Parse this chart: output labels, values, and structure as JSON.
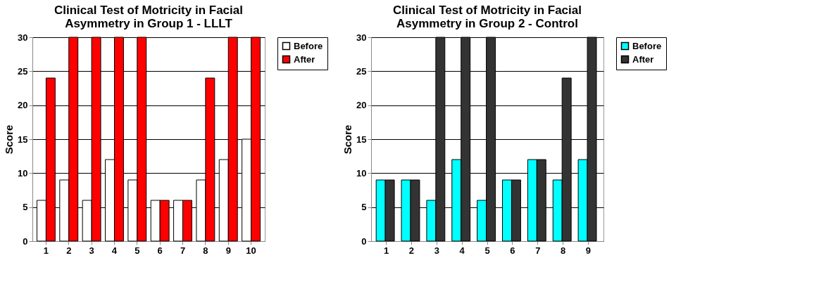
{
  "chart_data": [
    {
      "type": "bar",
      "title": "Clinical Test of Motricity in Facial Asymmetry in Group 1 - LLLT",
      "ylabel": "Score",
      "categories": [
        "1",
        "2",
        "3",
        "4",
        "5",
        "6",
        "7",
        "8",
        "9",
        "10"
      ],
      "series": [
        {
          "name": "Before",
          "color": "#ffffff",
          "values": [
            6,
            9,
            6,
            12,
            9,
            6,
            6,
            9,
            12,
            15
          ]
        },
        {
          "name": "After",
          "color": "#ff0000",
          "values": [
            24,
            30,
            30,
            30,
            30,
            6,
            6,
            24,
            30,
            30
          ]
        }
      ],
      "ylim": [
        0,
        30
      ],
      "yticks": [
        0,
        5,
        10,
        15,
        20,
        25,
        30
      ],
      "grid": "y",
      "legend": "right"
    },
    {
      "type": "bar",
      "title": "Clinical Test of Motricity in Facial Asymmetry in Group 2 - Control",
      "ylabel": "Score",
      "categories": [
        "1",
        "2",
        "3",
        "4",
        "5",
        "6",
        "7",
        "8",
        "9"
      ],
      "series": [
        {
          "name": "Before",
          "color": "#00ffff",
          "values": [
            9,
            9,
            6,
            12,
            6,
            9,
            12,
            9,
            12
          ]
        },
        {
          "name": "After",
          "color": "#333333",
          "values": [
            9,
            9,
            30,
            30,
            30,
            9,
            12,
            24,
            30
          ]
        }
      ],
      "ylim": [
        0,
        30
      ],
      "yticks": [
        0,
        5,
        10,
        15,
        20,
        25,
        30
      ],
      "grid": "y",
      "legend": "right"
    }
  ]
}
